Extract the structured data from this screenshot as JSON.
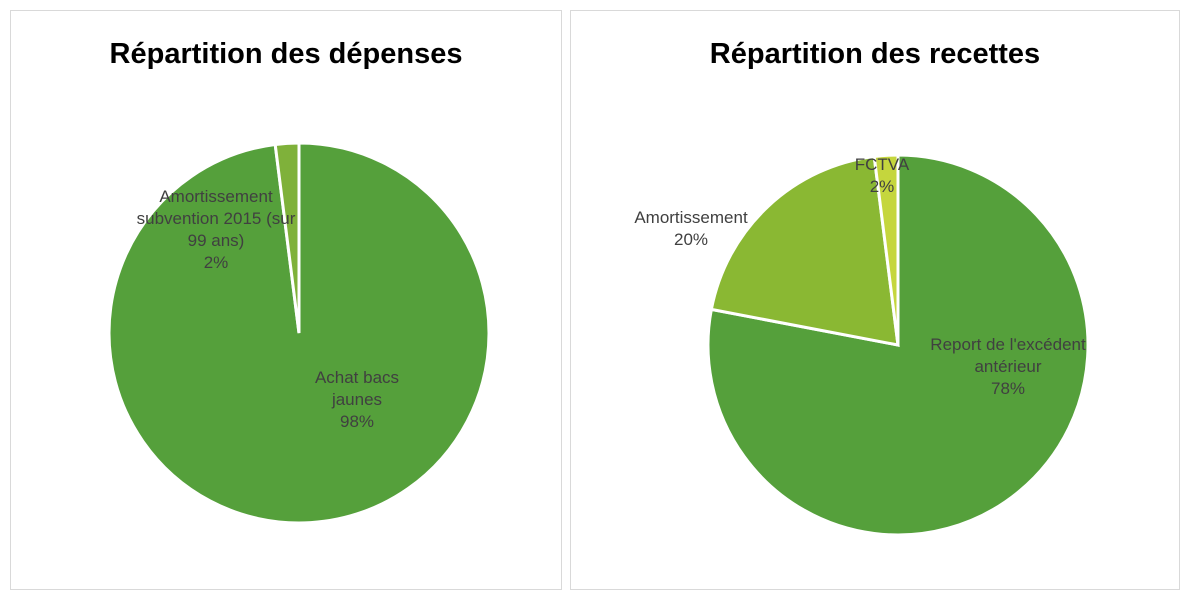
{
  "chart_data": [
    {
      "type": "pie",
      "title": "Répartition des dépenses",
      "categories": [
        "Achat bacs jaunes",
        "Amortissement subvention 2015 (sur 99 ans)"
      ],
      "values": [
        98,
        2
      ],
      "value_labels": [
        "98%",
        "2%"
      ],
      "colors": [
        "#55a03b",
        "#7fb13a"
      ]
    },
    {
      "type": "pie",
      "title": "Répartition des recettes",
      "categories": [
        "Report de l'excédent antérieur",
        "Amortissement",
        "FCTVA"
      ],
      "values": [
        78,
        20,
        2
      ],
      "value_labels": [
        "78%",
        "20%",
        "2%"
      ],
      "colors": [
        "#55a03b",
        "#8ab833",
        "#c5d63d"
      ]
    }
  ]
}
